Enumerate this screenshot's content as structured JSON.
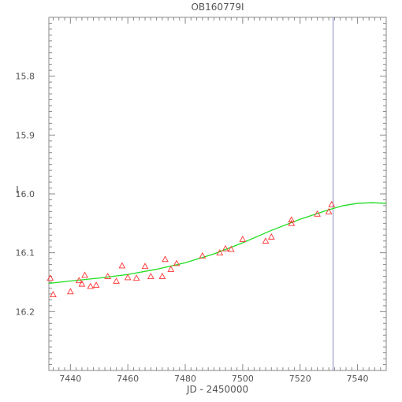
{
  "chart_data": {
    "type": "scatter",
    "title": "OB160779I",
    "xlabel": "JD - 2450000",
    "ylabel": "I",
    "xlim": [
      7432.5,
      7550
    ],
    "ylim": [
      16.3,
      15.7
    ],
    "y_inverted": true,
    "x_ticks": [
      7440,
      7460,
      7480,
      7500,
      7520,
      7540
    ],
    "y_ticks": [
      15.8,
      15.9,
      16.0,
      16.1,
      16.2
    ],
    "x_tick_labels": [
      "7440",
      "7460",
      "7480",
      "7500",
      "7520",
      "7540"
    ],
    "y_tick_labels": [
      "15.8",
      "15.9",
      "16.0",
      "16.1",
      "16.2"
    ],
    "grid": false,
    "vline_x": 7531.5,
    "colors": {
      "points": "#ff3333",
      "model": "#22dd22",
      "vline": "#8888cc",
      "axes": "#888888"
    },
    "series": [
      {
        "kind": "observations",
        "marker": "triangle",
        "x": [
          7433,
          7434,
          7440,
          7443,
          7444,
          7445,
          7447,
          7449,
          7453,
          7456,
          7458,
          7460,
          7463,
          7466,
          7468,
          7472,
          7473,
          7475,
          7477,
          7486,
          7492,
          7494,
          7496,
          7500,
          7508,
          7510,
          7517,
          7517,
          7526,
          7530,
          7531
        ],
        "y": [
          16.143,
          16.171,
          16.166,
          16.147,
          16.153,
          16.138,
          16.157,
          16.155,
          16.14,
          16.148,
          16.122,
          16.142,
          16.143,
          16.123,
          16.14,
          16.14,
          16.111,
          16.128,
          16.118,
          16.105,
          16.1,
          16.093,
          16.094,
          16.077,
          16.08,
          16.073,
          16.05,
          16.044,
          16.034,
          16.03,
          16.018
        ]
      },
      {
        "kind": "model",
        "line": true,
        "x": [
          7432.5,
          7440,
          7450,
          7460,
          7470,
          7480,
          7490,
          7500,
          7510,
          7520,
          7530,
          7535,
          7540,
          7545,
          7550
        ],
        "y": [
          16.152,
          16.148,
          16.143,
          16.137,
          16.128,
          16.117,
          16.102,
          16.083,
          16.062,
          16.043,
          16.027,
          16.02,
          16.016,
          16.015,
          16.016
        ]
      }
    ]
  }
}
